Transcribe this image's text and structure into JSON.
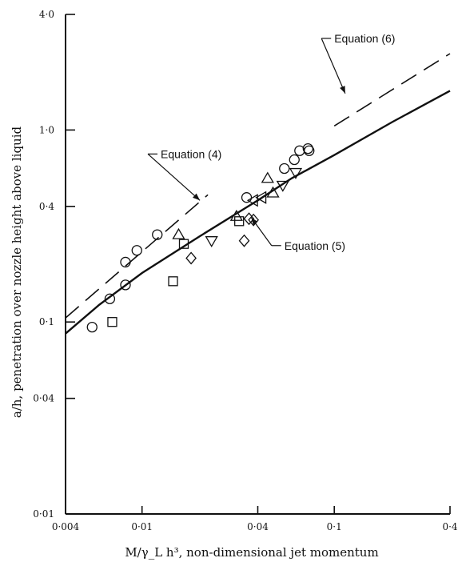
{
  "chart_data": {
    "type": "scatter",
    "title": "",
    "xlabel": "M/γ_L h³, non-dimensional jet momentum",
    "ylabel": "a/h, penetration over nozzle height above liquid",
    "xscale": "log",
    "yscale": "log",
    "xlim": [
      0.004,
      0.4
    ],
    "ylim": [
      0.01,
      4.0
    ],
    "x_ticks": [
      0.004,
      0.01,
      0.04,
      0.1,
      0.4
    ],
    "x_tick_labels": [
      "0·004",
      "0·01",
      "0·04",
      "0·1",
      "0·4"
    ],
    "y_ticks": [
      0.01,
      0.04,
      0.1,
      0.4,
      1.0,
      4.0
    ],
    "y_tick_labels": [
      "0·01",
      "0·04",
      "0·1",
      "0·4",
      "1·0",
      "4·0"
    ],
    "grid": false,
    "markers": {
      "circle": [
        [
          0.0055,
          0.094
        ],
        [
          0.0068,
          0.132
        ],
        [
          0.0082,
          0.156
        ],
        [
          0.0082,
          0.205
        ],
        [
          0.0094,
          0.236
        ],
        [
          0.012,
          0.285
        ],
        [
          0.035,
          0.445
        ],
        [
          0.055,
          0.63
        ],
        [
          0.062,
          0.7
        ],
        [
          0.066,
          0.78
        ],
        [
          0.073,
          0.8
        ],
        [
          0.074,
          0.78
        ]
      ],
      "square": [
        [
          0.007,
          0.1
        ],
        [
          0.0145,
          0.163
        ],
        [
          0.0165,
          0.255
        ],
        [
          0.032,
          0.335
        ]
      ],
      "triangle_up": [
        [
          0.0155,
          0.285
        ],
        [
          0.031,
          0.355
        ],
        [
          0.045,
          0.56
        ],
        [
          0.048,
          0.47
        ]
      ],
      "triangle_down": [
        [
          0.023,
          0.265
        ],
        [
          0.054,
          0.515
        ],
        [
          0.063,
          0.6
        ]
      ],
      "triangle_left": [
        [
          0.038,
          0.43
        ],
        [
          0.042,
          0.445
        ]
      ],
      "diamond": [
        [
          0.018,
          0.215
        ],
        [
          0.034,
          0.265
        ],
        [
          0.036,
          0.345
        ],
        [
          0.038,
          0.34
        ]
      ]
    },
    "series": [
      {
        "name": "Equation (5)",
        "style": "solid",
        "x": [
          0.004,
          0.006,
          0.01,
          0.02,
          0.04,
          0.06,
          0.1,
          0.2,
          0.4
        ],
        "y": [
          0.087,
          0.123,
          0.18,
          0.28,
          0.43,
          0.56,
          0.74,
          1.1,
          1.6
        ]
      },
      {
        "name": "Equation (4)",
        "style": "dashed",
        "x": [
          0.004,
          0.022
        ],
        "y": [
          0.105,
          0.46
        ]
      },
      {
        "name": "Equation (6)",
        "style": "dashed",
        "x": [
          0.1,
          0.4
        ],
        "y": [
          1.05,
          2.5
        ]
      }
    ],
    "annotations": [
      {
        "text": "Equation (4)",
        "x": 0.0125,
        "y": 0.75
      },
      {
        "text": "Equation (5)",
        "x": 0.055,
        "y": 0.25
      },
      {
        "text": "Equation (6)",
        "x": 0.1,
        "y": 3.0
      }
    ]
  }
}
